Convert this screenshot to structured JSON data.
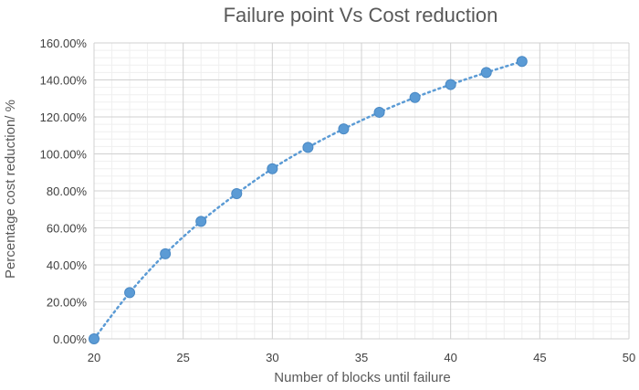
{
  "chart_data": {
    "type": "scatter",
    "title": "Failure point Vs Cost reduction",
    "xlabel": "Number of blocks until failure",
    "ylabel": "Percentage cost reduction/ %",
    "xlim": [
      20,
      50
    ],
    "ylim": [
      0,
      160
    ],
    "x_ticks": [
      "20",
      "25",
      "30",
      "35",
      "40",
      "45",
      "50"
    ],
    "y_ticks": [
      "0.00%",
      "20.00%",
      "40.00%",
      "60.00%",
      "80.00%",
      "100.00%",
      "120.00%",
      "140.00%",
      "160.00%"
    ],
    "grid": true,
    "legend": "none",
    "trendline": "dotted",
    "marker_color": "#5B9BD5",
    "series": [
      {
        "x": [
          20,
          22,
          24,
          26,
          28,
          30,
          32,
          34,
          36,
          38,
          40,
          42,
          44
        ],
        "y": [
          0,
          25,
          46,
          63.5,
          78.5,
          92,
          103.5,
          113.5,
          122.5,
          130.5,
          137.5,
          144,
          150
        ]
      }
    ]
  }
}
